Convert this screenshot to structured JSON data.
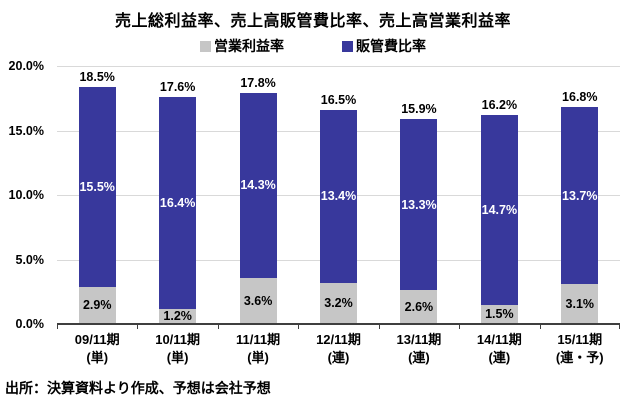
{
  "title": "売上総利益率、売上高販管費比率、売上高営業利益率",
  "source_note": "出所：決算資料より作成、予想は会社予想",
  "legend": {
    "items": [
      {
        "label": "営業利益率",
        "color": "#c6c6c6"
      },
      {
        "label": "販管費比率",
        "color": "#38389c"
      }
    ]
  },
  "colors": {
    "grid": "#d9d9d9",
    "axis": "#3f3f3f",
    "operating_margin_gray": "#c6c6c6",
    "sga_ratio_blue": "#38389c"
  },
  "chart_data": {
    "type": "bar",
    "stacked": true,
    "title": "売上総利益率、売上高販管費比率、売上高営業利益率",
    "categories": [
      {
        "period": "09/11期",
        "note": "(単)"
      },
      {
        "period": "10/11期",
        "note": "(単)"
      },
      {
        "period": "11/11期",
        "note": "(単)"
      },
      {
        "period": "12/11期",
        "note": "(連)"
      },
      {
        "period": "13/11期",
        "note": "(連)"
      },
      {
        "period": "14/11期",
        "note": "(連)"
      },
      {
        "period": "15/11期",
        "note": "(連・予)"
      }
    ],
    "series": [
      {
        "name": "営業利益率",
        "color": "#c6c6c6",
        "text_color": "#000000",
        "values": [
          2.9,
          1.2,
          3.6,
          3.2,
          2.6,
          1.5,
          3.1
        ]
      },
      {
        "name": "販管費比率",
        "color": "#38389c",
        "text_color": "#ffffff",
        "values": [
          15.5,
          16.4,
          14.3,
          13.4,
          13.3,
          14.7,
          13.7
        ]
      }
    ],
    "total_labels": [
      18.5,
      17.6,
      17.8,
      16.5,
      15.9,
      16.2,
      16.8
    ],
    "ylim": [
      0,
      20
    ],
    "yticks": [
      0,
      5,
      10,
      15,
      20
    ],
    "ytick_suffix": "%",
    "value_suffix": "%",
    "grid": true,
    "legend_position": "top"
  }
}
